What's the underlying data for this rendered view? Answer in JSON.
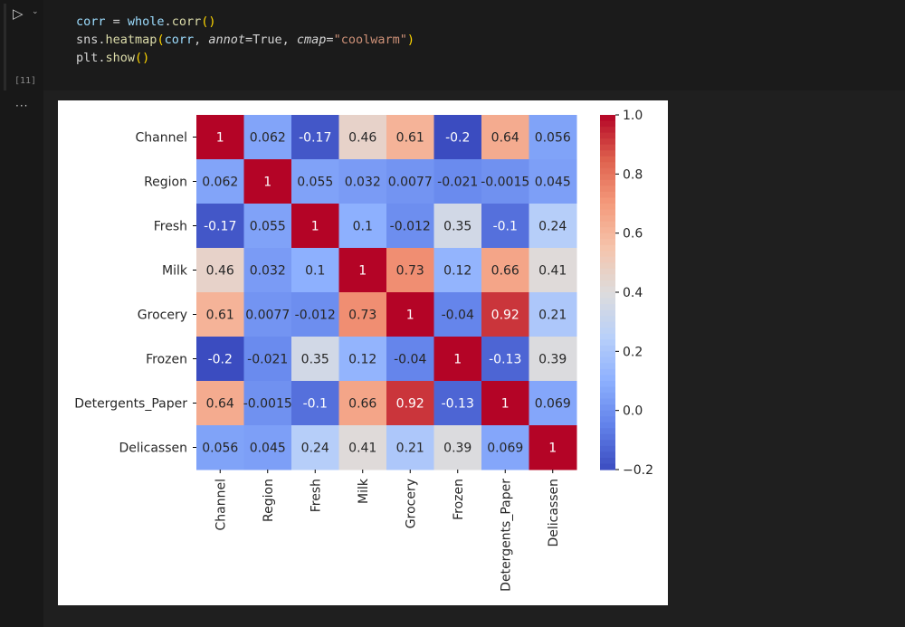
{
  "cell": {
    "execution_count": "[11]",
    "run_icon": "play-icon",
    "more_icon": "ellipsis-icon",
    "code": {
      "line1": {
        "a": "corr",
        "eq": " = ",
        "b": "whole",
        "dot": ".",
        "fn": "corr",
        "paren": "()"
      },
      "line2": {
        "mod": "sns",
        "dot": ".",
        "fn": "heatmap",
        "open": "(",
        "arg": "corr",
        "sep1": ", ",
        "k1": "annot",
        "eq1": "=True, ",
        "k2": "cmap",
        "eq2": "=",
        "str": "\"coolwarm\"",
        "close": ")"
      },
      "line3": {
        "mod": "plt",
        "dot": ".",
        "fn": "show",
        "paren": "()"
      }
    }
  },
  "chart_data": {
    "type": "heatmap",
    "colormap": "coolwarm",
    "labels": [
      "Channel",
      "Region",
      "Fresh",
      "Milk",
      "Grocery",
      "Frozen",
      "Detergents_Paper",
      "Delicassen"
    ],
    "annotations": [
      [
        "1",
        "0.062",
        "-0.17",
        "0.46",
        "0.61",
        "-0.2",
        "0.64",
        "0.056"
      ],
      [
        "0.062",
        "1",
        "0.055",
        "0.032",
        "0.0077",
        "-0.021",
        "-0.0015",
        "0.045"
      ],
      [
        "-0.17",
        "0.055",
        "1",
        "0.1",
        "-0.012",
        "0.35",
        "-0.1",
        "0.24"
      ],
      [
        "0.46",
        "0.032",
        "0.1",
        "1",
        "0.73",
        "0.12",
        "0.66",
        "0.41"
      ],
      [
        "0.61",
        "0.0077",
        "-0.012",
        "0.73",
        "1",
        "-0.04",
        "0.92",
        "0.21"
      ],
      [
        "-0.2",
        "-0.021",
        "0.35",
        "0.12",
        "-0.04",
        "1",
        "-0.13",
        "0.39"
      ],
      [
        "0.64",
        "-0.0015",
        "-0.1",
        "0.66",
        "0.92",
        "-0.13",
        "1",
        "0.069"
      ],
      [
        "0.056",
        "0.045",
        "0.24",
        "0.41",
        "0.21",
        "0.39",
        "0.069",
        "1"
      ]
    ],
    "colorbar": {
      "range": [
        -0.2,
        1.0
      ],
      "ticks": [
        "1.0",
        "0.8",
        "0.6",
        "0.4",
        "0.2",
        "0.0",
        "−0.2"
      ]
    }
  }
}
